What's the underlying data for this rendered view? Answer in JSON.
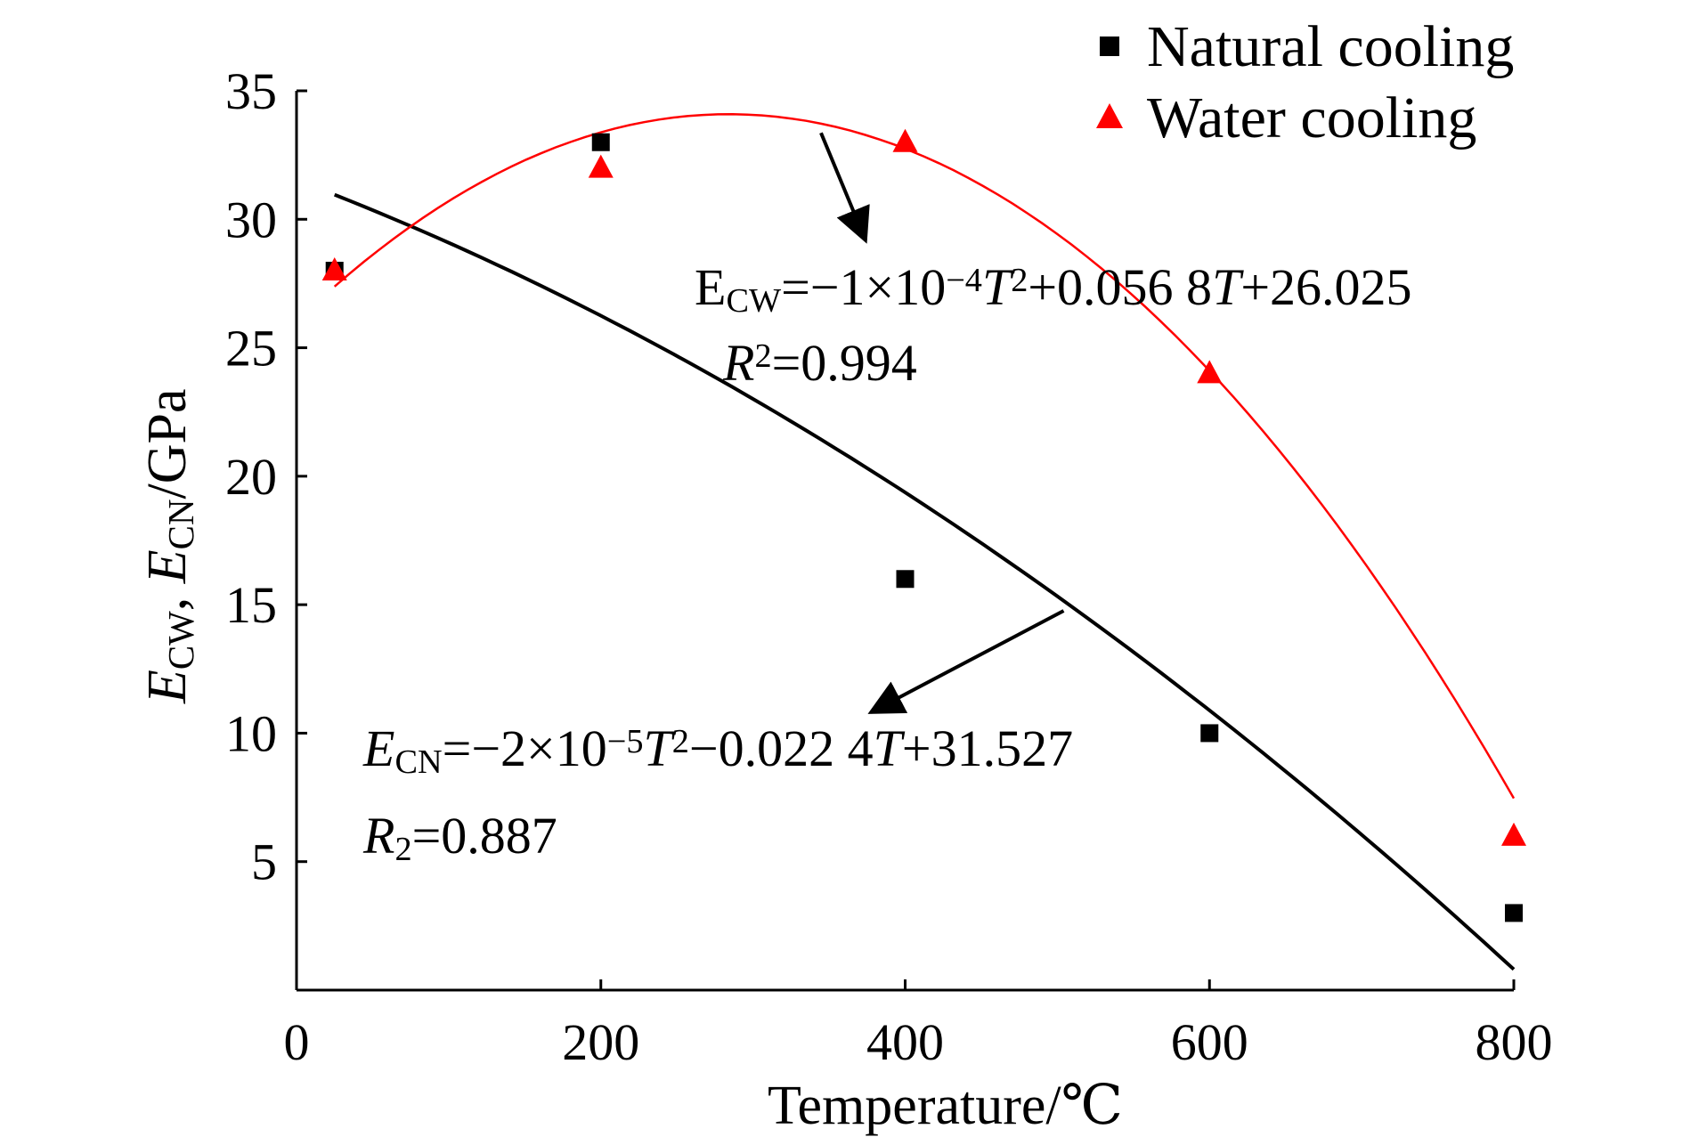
{
  "chart_data": {
    "type": "scatter",
    "xlabel": "Temperature/℃",
    "ylabel": {
      "parts": [
        {
          "text": "E",
          "style": "italic"
        },
        {
          "text": "CW",
          "style": "sub"
        },
        {
          "text": ", ",
          "style": "normal"
        },
        {
          "text": "E",
          "style": "italic"
        },
        {
          "text": "CN",
          "style": "sub"
        },
        {
          "text": "/GPa",
          "style": "normal"
        }
      ]
    },
    "xlim": [
      0,
      800
    ],
    "ylim": [
      0,
      35
    ],
    "xticks": [
      0,
      200,
      400,
      600,
      800
    ],
    "yticks": [
      5,
      10,
      15,
      20,
      25,
      30,
      35
    ],
    "grid": false,
    "legend_position": "top-right",
    "series": [
      {
        "name": "Natural cooling",
        "marker": "square",
        "color": "#000000",
        "x": [
          25,
          200,
          400,
          600,
          800
        ],
        "y": [
          28,
          33,
          16,
          10,
          3
        ],
        "fit": {
          "a": -2e-05,
          "b": -0.0224,
          "c": 31.527,
          "x_range": [
            25,
            800
          ]
        }
      },
      {
        "name": "Water cooling",
        "marker": "triangle",
        "color": "#ff0000",
        "x": [
          25,
          200,
          400,
          600,
          800
        ],
        "y": [
          28,
          32,
          33,
          24,
          6
        ],
        "fit": {
          "a": -0.0001,
          "b": 0.0568,
          "c": 26.025,
          "x_range": [
            25,
            800
          ]
        }
      }
    ],
    "annotations": [
      {
        "id": "eq-water",
        "parts": [
          {
            "text": "E",
            "style": "normal"
          },
          {
            "text": "CW",
            "style": "sub"
          },
          {
            "text": "=−1×10",
            "style": "normal"
          },
          {
            "text": "−4",
            "style": "sup"
          },
          {
            "text": "T",
            "style": "italic"
          },
          {
            "text": "2",
            "style": "sup"
          },
          {
            "text": "+0.056 8",
            "style": "normal"
          },
          {
            "text": "T",
            "style": "italic"
          },
          {
            "text": "+26.025",
            "style": "normal"
          }
        ],
        "r2": [
          {
            "text": "R",
            "style": "italic"
          },
          {
            "text": "2",
            "style": "sup"
          },
          {
            "text": "=0.994",
            "style": "normal"
          }
        ],
        "points_to_x": 340
      },
      {
        "id": "eq-natural",
        "parts": [
          {
            "text": "E",
            "style": "italic"
          },
          {
            "text": "CN",
            "style": "sub"
          },
          {
            "text": "=−2×10",
            "style": "normal"
          },
          {
            "text": "−5",
            "style": "sup"
          },
          {
            "text": "T",
            "style": "italic"
          },
          {
            "text": "2",
            "style": "sup"
          },
          {
            "text": "−0.022 4",
            "style": "normal"
          },
          {
            "text": "T",
            "style": "italic"
          },
          {
            "text": "+31.527",
            "style": "normal"
          }
        ],
        "r2": [
          {
            "text": "R",
            "style": "italic"
          },
          {
            "text": "2",
            "style": "sub"
          },
          {
            "text": "=0.887",
            "style": "normal"
          }
        ],
        "points_to_x": 510
      }
    ]
  }
}
